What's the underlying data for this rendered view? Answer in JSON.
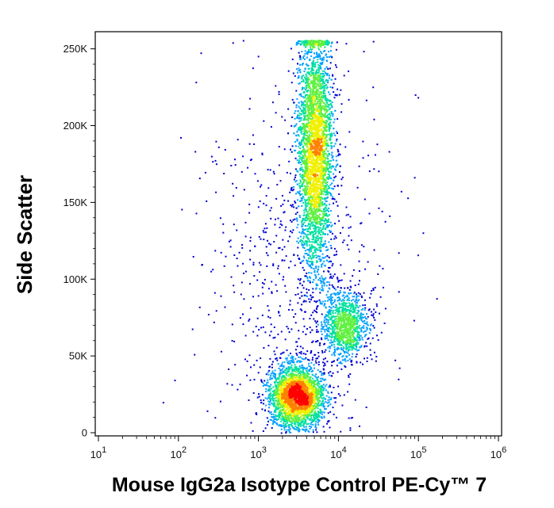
{
  "chart_data": {
    "type": "scatter",
    "title": "",
    "xlabel": "Mouse IgG2a Isotype Control PE-Cy™ 7",
    "ylabel": "Side Scatter",
    "x_scale": "log",
    "xlim": [
      10,
      1000000
    ],
    "ylim": [
      0,
      256000
    ],
    "x_ticks": [
      {
        "value": 10,
        "base": "10",
        "exp": "1"
      },
      {
        "value": 100,
        "base": "10",
        "exp": "2"
      },
      {
        "value": 1000,
        "base": "10",
        "exp": "3"
      },
      {
        "value": 10000,
        "base": "10",
        "exp": "4"
      },
      {
        "value": 100000,
        "base": "10",
        "exp": "5"
      },
      {
        "value": 1000000,
        "base": "10",
        "exp": "6"
      }
    ],
    "y_ticks": [
      {
        "value": 0,
        "label": "0"
      },
      {
        "value": 50000,
        "label": "50K"
      },
      {
        "value": 100000,
        "label": "100K"
      },
      {
        "value": 150000,
        "label": "150K"
      },
      {
        "value": 200000,
        "label": "200K"
      },
      {
        "value": 250000,
        "label": "250K"
      }
    ],
    "grid": false,
    "legend": "none",
    "colormap": [
      "#0000d0",
      "#00a0ff",
      "#00e0a0",
      "#60f040",
      "#f0f000",
      "#ff8000",
      "#ff0000"
    ],
    "series": [
      {
        "center_x": 5000,
        "center_y": 185000,
        "spread_log_x": 0.11,
        "spread_y": 40000,
        "weight": 0.5
      },
      {
        "center_x": 12000,
        "center_y": 70000,
        "spread_log_x": 0.14,
        "spread_y": 11000,
        "weight": 0.12
      },
      {
        "center_x": 3000,
        "center_y": 24000,
        "spread_log_x": 0.17,
        "spread_y": 10000,
        "weight": 0.3
      },
      {
        "center_x": 3000,
        "center_y": 100000,
        "spread_log_x": 0.6,
        "spread_y": 60000,
        "weight": 0.08
      }
    ]
  }
}
